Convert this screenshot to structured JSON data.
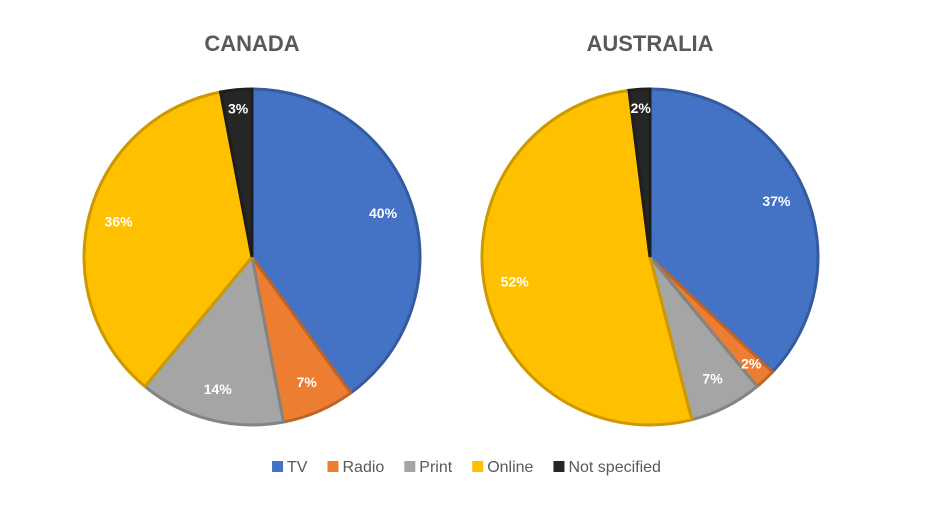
{
  "chart_data": [
    {
      "type": "pie",
      "title": "CANADA",
      "categories": [
        "TV",
        "Radio",
        "Print",
        "Online",
        "Not specified"
      ],
      "values": [
        40,
        7,
        14,
        36,
        3
      ],
      "value_labels": [
        "40%",
        "7%",
        "14%",
        "36%",
        "3%"
      ],
      "colors": [
        "#4472c4",
        "#ed7d31",
        "#a5a5a5",
        "#ffc000",
        "#262626"
      ]
    },
    {
      "type": "pie",
      "title": "AUSTRALIA",
      "categories": [
        "TV",
        "Radio",
        "Print",
        "Online",
        "Not specified"
      ],
      "values": [
        37,
        2,
        7,
        52,
        2
      ],
      "value_labels": [
        "37%",
        "2%",
        "7%",
        "52%",
        "2%"
      ],
      "colors": [
        "#4472c4",
        "#ed7d31",
        "#a5a5a5",
        "#ffc000",
        "#262626"
      ]
    }
  ]
}
